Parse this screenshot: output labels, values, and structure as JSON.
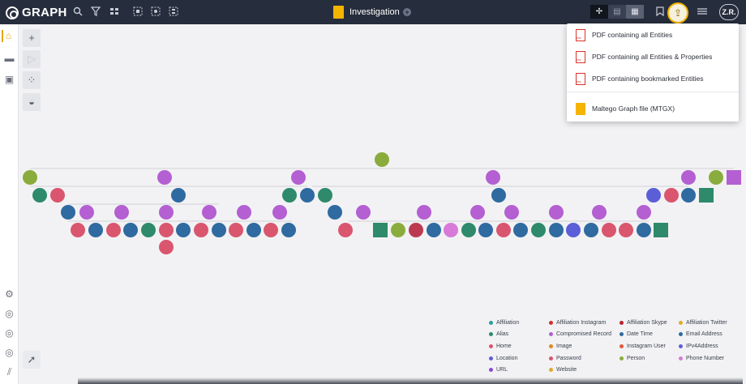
{
  "app": {
    "name": "GRAPH"
  },
  "document": {
    "title": "Investigation"
  },
  "user": {
    "initials": "Z.R."
  },
  "toolbar": {
    "icons": [
      "search-icon",
      "filter-icon",
      "layout-icon",
      "select-icon",
      "select-neighbors-icon",
      "select-children-icon"
    ],
    "views": [
      "graph-view-icon",
      "map-view-icon",
      "list-view-icon"
    ],
    "right": [
      "bookmark-icon",
      "export-icon",
      "menu-icon"
    ]
  },
  "export_menu": {
    "items": [
      {
        "label": "PDF containing all Entities",
        "icon": "pdf-icon"
      },
      {
        "label": "PDF containing all Entities & Properties",
        "icon": "pdf-icon"
      },
      {
        "label": "PDF containing bookmarked Entities",
        "icon": "pdf-icon"
      },
      {
        "label": "Maltego Graph file (MTGX)",
        "icon": "mtgx-icon"
      }
    ]
  },
  "colors": {
    "olive": "#8aac3c",
    "purple": "#b45fd2",
    "teal": "#2e8a6a",
    "red": "#d9566e",
    "blue": "#2f6aa0",
    "violet": "#5c5ed8",
    "pink": "#d77ad8",
    "darkred": "#bb3a52",
    "accent": "#f0b400"
  },
  "legend": [
    {
      "label": "Affiliation",
      "color": "#2e9aa0"
    },
    {
      "label": "Affiliation Instagram",
      "color": "#d3302f"
    },
    {
      "label": "Affiliation Skype",
      "color": "#b8252e"
    },
    {
      "label": "Affiliation Twitter",
      "color": "#e0a92a"
    },
    {
      "label": "Alias",
      "color": "#2e8a6a"
    },
    {
      "label": "Compromised Record",
      "color": "#b45fd2"
    },
    {
      "label": "Date Time",
      "color": "#2f6aa0"
    },
    {
      "label": "Email Address",
      "color": "#2f6aa0"
    },
    {
      "label": "Home",
      "color": "#d9566e"
    },
    {
      "label": "Image",
      "color": "#e08a22"
    },
    {
      "label": "Instagram User",
      "color": "#e05a3a"
    },
    {
      "label": "IPv4Address",
      "color": "#5c5ed8"
    },
    {
      "label": "Location",
      "color": "#5c5ed8"
    },
    {
      "label": "Password",
      "color": "#d9566e"
    },
    {
      "label": "Person",
      "color": "#8aac3c"
    },
    {
      "label": "Phone Number",
      "color": "#d77ad8"
    },
    {
      "label": "URL",
      "color": "#8a4ad0"
    },
    {
      "label": "Website",
      "color": "#e0a92a"
    }
  ],
  "graph": {
    "root": "olive",
    "rows": [
      [
        "olive",
        "purple",
        "purple",
        "purple",
        "purple",
        "olive",
        "purple-sq"
      ],
      [
        "teal",
        "red",
        "blue",
        "teal",
        "blue",
        "teal",
        "blue",
        "violet",
        "red",
        "blue",
        "teal-sq"
      ],
      [
        "blue",
        "purple",
        "purple",
        "purple",
        "purple",
        "purple",
        "purple",
        "blue",
        "purple",
        "purple",
        "purple",
        "purple",
        "purple",
        "purple",
        "purple"
      ],
      [
        "red",
        "blue",
        "red",
        "blue",
        "teal",
        "red",
        "blue",
        "red",
        "blue",
        "red",
        "blue",
        "red",
        "blue",
        "red",
        "teal-sq",
        "olive",
        "darkred",
        "blue",
        "pink",
        "teal",
        "blue",
        "red",
        "blue",
        "teal",
        "blue",
        "violet",
        "blue",
        "red",
        "red",
        "blue",
        "teal-sq"
      ],
      [
        "red"
      ]
    ]
  }
}
